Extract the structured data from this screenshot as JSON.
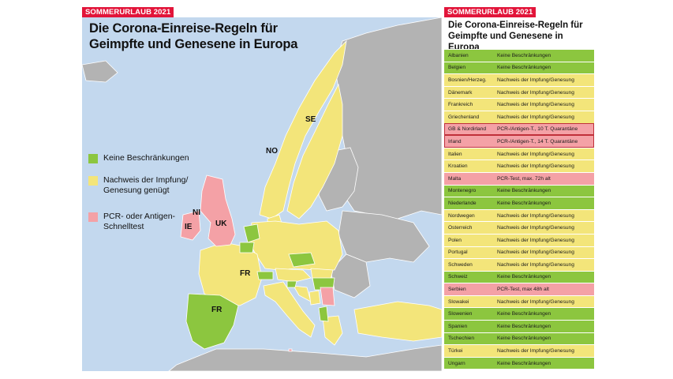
{
  "header_tag": "SOMMERURLAUB 2021",
  "map": {
    "title_line1": "Die Corona-Einreise-Regeln für",
    "title_line2": "Geimpfte und Genesene in Europa",
    "legend": [
      {
        "label": "Keine Beschränkungen",
        "color": "#8cc63f"
      },
      {
        "label": "Nachweis der Impfung/ Genesung genügt",
        "color": "#f3e57a"
      },
      {
        "label": "PCR- oder Antigen-Schnelltest",
        "color": "#f4a1a6"
      }
    ],
    "country_labels": [
      "SE",
      "NO",
      "NI",
      "IE",
      "UK",
      "FR",
      "FR"
    ],
    "colors": {
      "sea": "#c3d8ee",
      "other": "#b3b3b3",
      "green": "#8cc63f",
      "yellow": "#f3e57a",
      "red": "#f4a1a6"
    }
  },
  "table": {
    "title_line1": "Die Corona-Einreise-Regeln für",
    "title_line2": "Geimpfte und Genesene in Europa",
    "rows": [
      {
        "country": "Albanien",
        "rule": "Keine Beschränkungen",
        "status": "green"
      },
      {
        "country": "Belgien",
        "rule": "Keine Beschränkungen",
        "status": "green"
      },
      {
        "country": "Bosnien/Herzeg.",
        "rule": "Nachweis der Impfung/Genesung",
        "status": "yellow"
      },
      {
        "country": "Dänemark",
        "rule": "Nachweis der Impfung/Genesung",
        "status": "yellow"
      },
      {
        "country": "Frankreich",
        "rule": "Nachweis der Impfung/Genesung",
        "status": "yellow"
      },
      {
        "country": "Griechenland",
        "rule": "Nachweis der Impfung/Genesung",
        "status": "yellow"
      },
      {
        "country": "GB & Nordirland",
        "rule": "PCR-/Antigen-T., 10 T. Quarantäne",
        "status": "red"
      },
      {
        "country": "Irland",
        "rule": "PCR-/Antigen-T., 14 T. Quarantäne",
        "status": "red"
      },
      {
        "country": "Italien",
        "rule": "Nachweis der Impfung/Genesung",
        "status": "yellow"
      },
      {
        "country": "Kroatien",
        "rule": "Nachweis der Impfung/Genesung",
        "status": "yellow"
      },
      {
        "country": "Malta",
        "rule": "PCR-Test, max. 72h alt",
        "status": "red"
      },
      {
        "country": "Montenegro",
        "rule": "Keine Beschränkungen",
        "status": "green"
      },
      {
        "country": "Niederlande",
        "rule": "Keine Beschränkungen",
        "status": "green"
      },
      {
        "country": "Nordwegen",
        "rule": "Nachweis der Impfung/Genesung",
        "status": "yellow"
      },
      {
        "country": "Österreich",
        "rule": "Nachweis der Impfung/Genesung",
        "status": "yellow"
      },
      {
        "country": "Polen",
        "rule": "Nachweis der Impfung/Genesung",
        "status": "yellow"
      },
      {
        "country": "Portugal",
        "rule": "Nachweis der Impfung/Genesung",
        "status": "yellow"
      },
      {
        "country": "Schweden",
        "rule": "Nachweis der Impfung/Genesung",
        "status": "yellow"
      },
      {
        "country": "Schweiz",
        "rule": "Keine Beschränkungen",
        "status": "green"
      },
      {
        "country": "Serbien",
        "rule": "PCR-Test, max 48h alt",
        "status": "red"
      },
      {
        "country": "Slowakei",
        "rule": "Nachweis der Impfung/Genesung",
        "status": "yellow"
      },
      {
        "country": "Slowenien",
        "rule": "Keine Beschränkungen",
        "status": "green"
      },
      {
        "country": "Spanien",
        "rule": "Keine Beschränkungen",
        "status": "green"
      },
      {
        "country": "Tschechien",
        "rule": "Keine Beschränkungen",
        "status": "green"
      },
      {
        "country": "Türkei",
        "rule": "Nachweis der Impfung/Genesung",
        "status": "yellow"
      },
      {
        "country": "Ungarn",
        "rule": "Keine Beschränkungen",
        "status": "green"
      }
    ]
  }
}
